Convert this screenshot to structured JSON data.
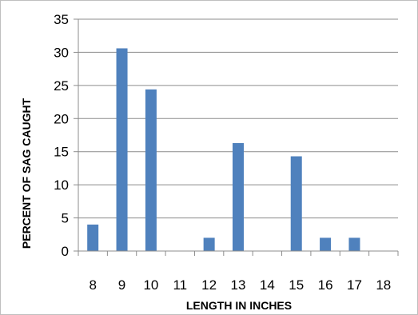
{
  "chart_data": {
    "type": "bar",
    "categories": [
      "8",
      "9",
      "10",
      "11",
      "12",
      "13",
      "14",
      "15",
      "16",
      "17",
      "18"
    ],
    "values": [
      4,
      30.6,
      24.4,
      0,
      2,
      16.3,
      0,
      14.3,
      2,
      2,
      0
    ],
    "title": "",
    "xlabel": "LENGTH IN INCHES",
    "ylabel": "PERCENT OF SAG CAUGHT",
    "ylim": [
      0,
      35
    ],
    "yticks": [
      0,
      5,
      10,
      15,
      20,
      25,
      30,
      35
    ],
    "grid": true,
    "legend": "none",
    "colors": {
      "bar": "#4f81bd",
      "grid": "#8c8c8c",
      "axis": "#8c8c8c"
    }
  }
}
